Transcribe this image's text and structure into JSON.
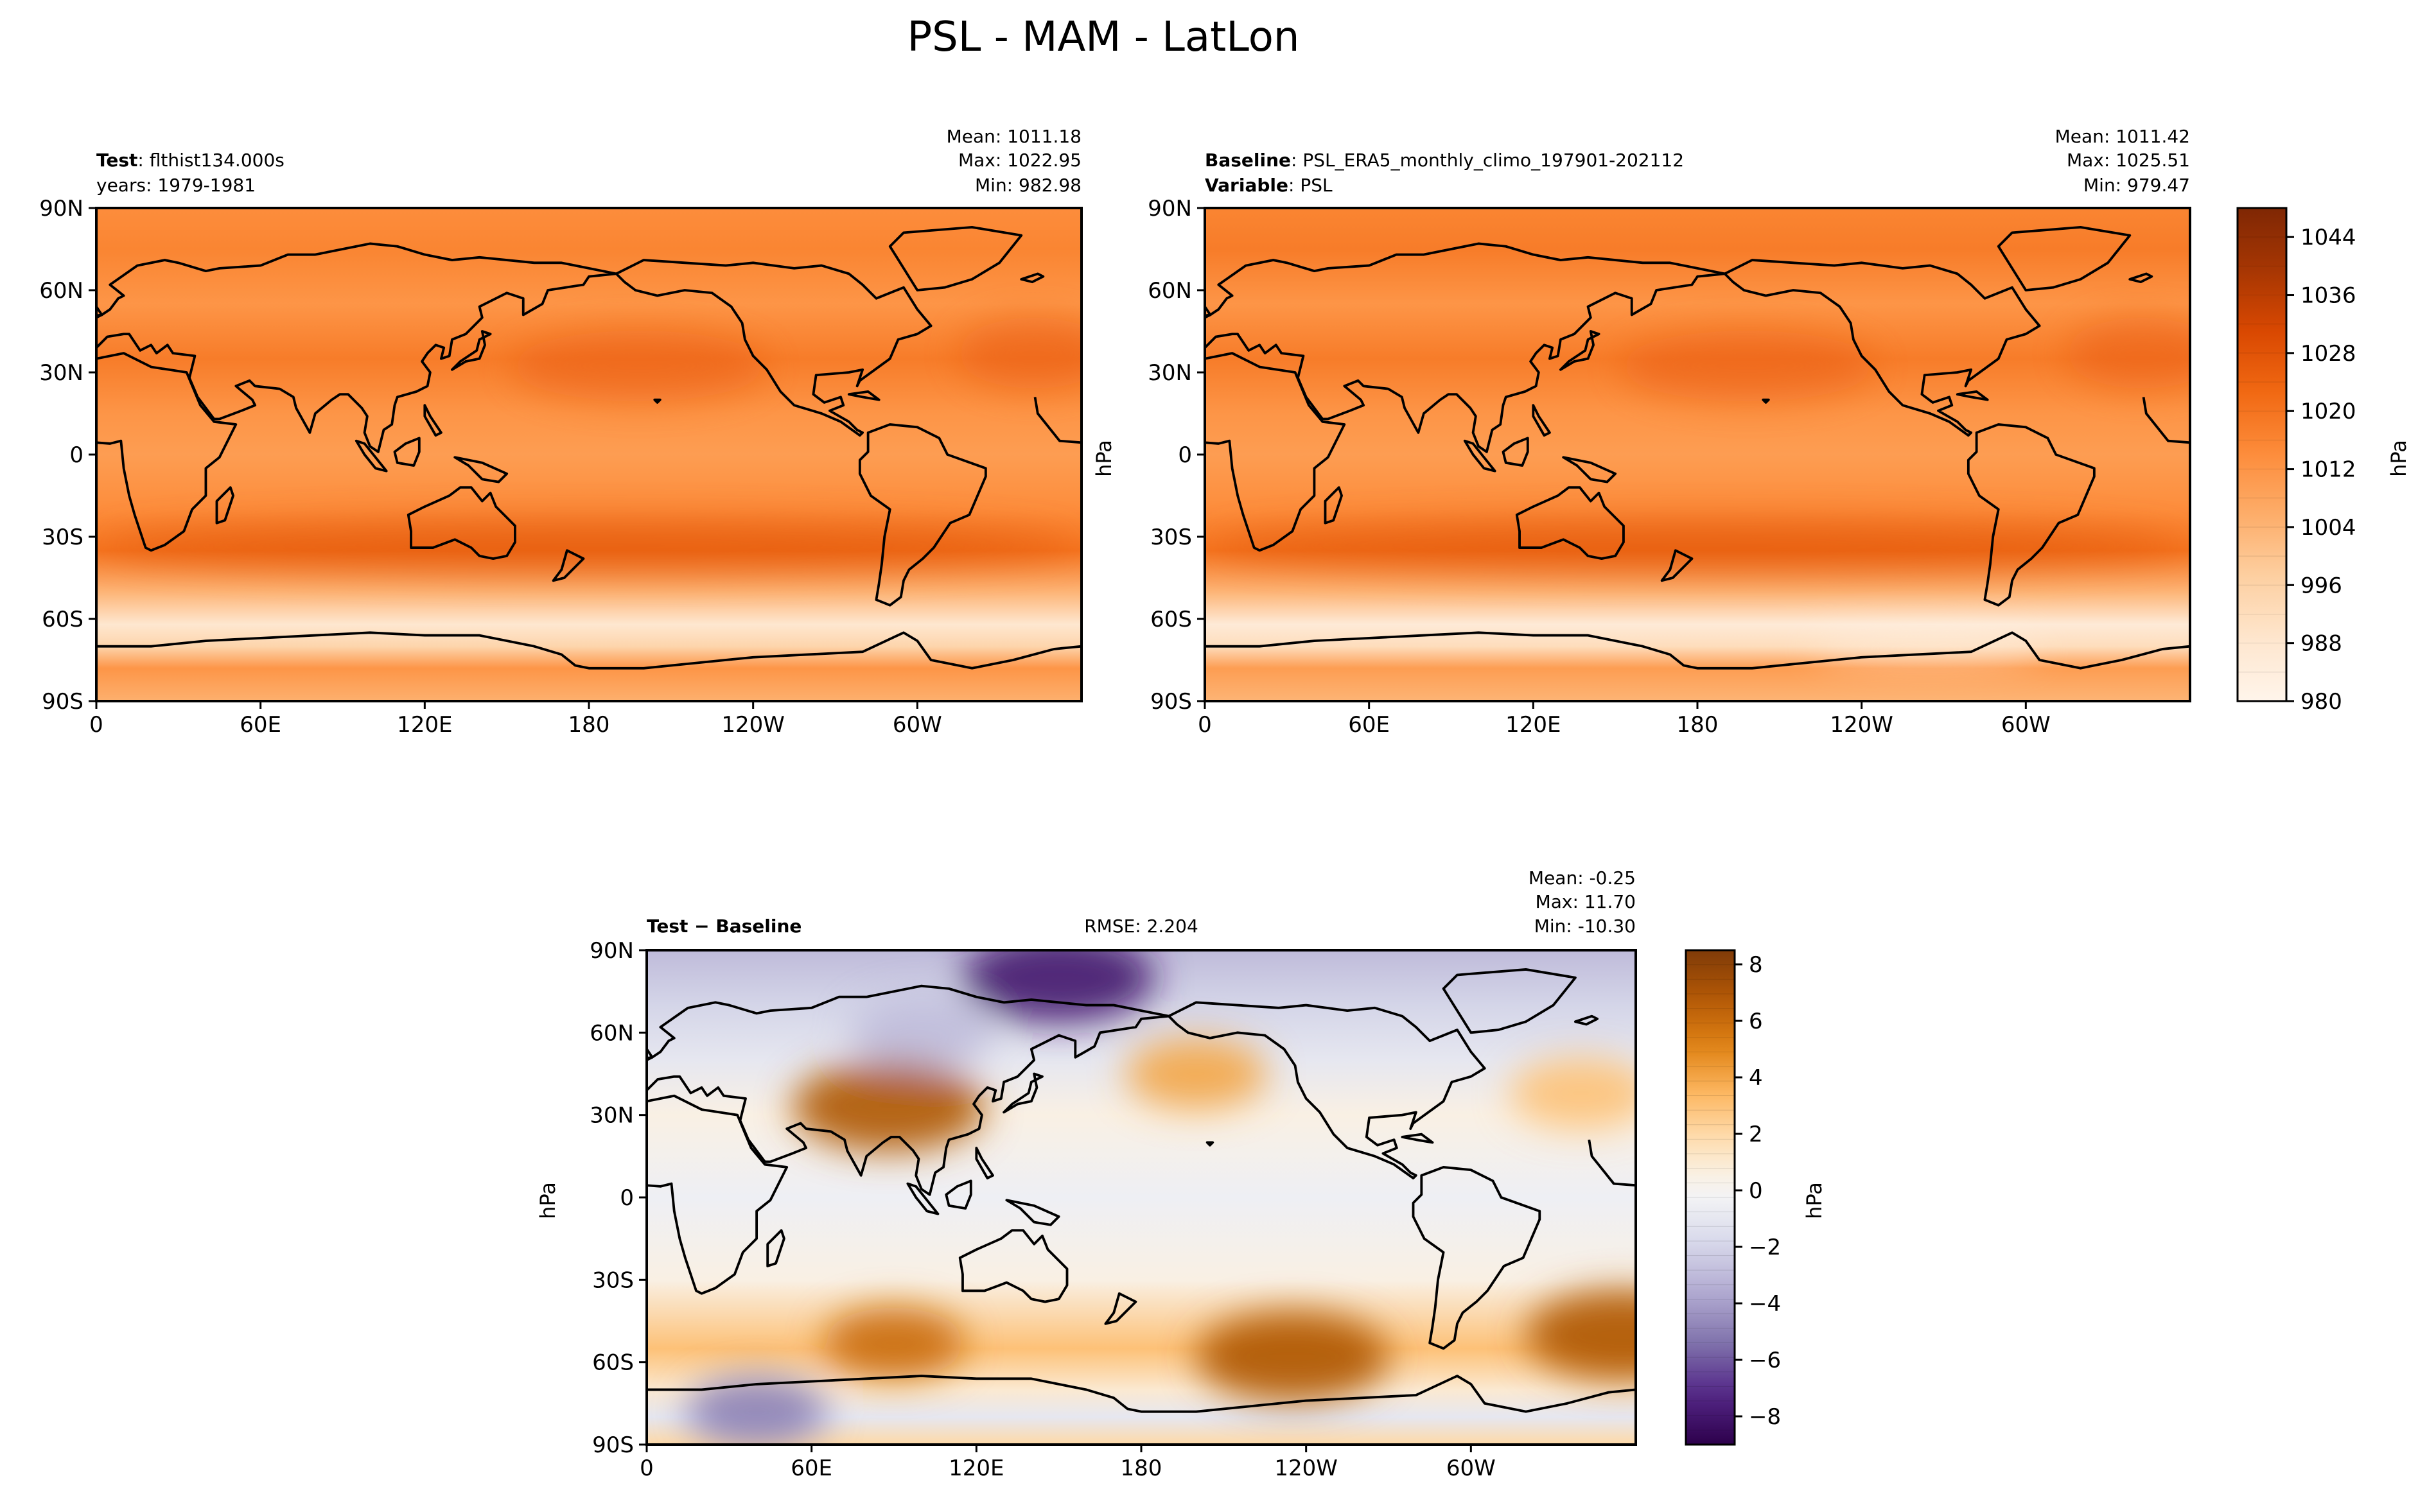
{
  "figure": {
    "title": "PSL - MAM - LatLon"
  },
  "chart_data": [
    {
      "type": "heatmap",
      "panel": "test",
      "label_bold": "Test",
      "label_text": "flthist134.000s",
      "label2_text": "years: 1979-1981",
      "stats": {
        "mean": "Mean: 1011.18",
        "max": "Max: 1022.95",
        "min": "Min: 982.98"
      },
      "xticks": [
        "0",
        "60E",
        "120E",
        "180",
        "120W",
        "60W"
      ],
      "yticks": [
        "90N",
        "60N",
        "30N",
        "0",
        "30S",
        "60S",
        "90S"
      ],
      "ylim": [
        -90,
        90
      ],
      "zones": [
        {
          "lat": 90,
          "value": 1014
        },
        {
          "lat": 75,
          "value": 1016
        },
        {
          "lat": 55,
          "value": 1012
        },
        {
          "lat": 35,
          "value": 1018
        },
        {
          "lat": 15,
          "value": 1012
        },
        {
          "lat": 0,
          "value": 1010
        },
        {
          "lat": -20,
          "value": 1014
        },
        {
          "lat": -35,
          "value": 1020
        },
        {
          "lat": -50,
          "value": 1004
        },
        {
          "lat": -62,
          "value": 988
        },
        {
          "lat": -70,
          "value": 995
        },
        {
          "lat": -78,
          "value": 1012
        },
        {
          "lat": -90,
          "value": 1005
        }
      ]
    },
    {
      "type": "heatmap",
      "panel": "baseline",
      "label_bold": "Baseline",
      "label_text": "PSL_ERA5_monthly_climo_197901-202112",
      "label2_bold": "Variable",
      "label2_text": "PSL",
      "stats": {
        "mean": "Mean: 1011.42",
        "max": "Max: 1025.51",
        "min": "Min: 979.47"
      },
      "xticks": [
        "0",
        "60E",
        "120E",
        "180",
        "120W",
        "60W"
      ],
      "yticks": [
        "90N",
        "60N",
        "30N",
        "0",
        "30S",
        "60S",
        "90S"
      ],
      "ylabel": "hPa",
      "ylim": [
        -90,
        90
      ],
      "zones": [
        {
          "lat": 90,
          "value": 1016
        },
        {
          "lat": 75,
          "value": 1018
        },
        {
          "lat": 55,
          "value": 1012
        },
        {
          "lat": 35,
          "value": 1018
        },
        {
          "lat": 15,
          "value": 1012
        },
        {
          "lat": 0,
          "value": 1010
        },
        {
          "lat": -20,
          "value": 1014
        },
        {
          "lat": -35,
          "value": 1020
        },
        {
          "lat": -50,
          "value": 1004
        },
        {
          "lat": -62,
          "value": 986
        },
        {
          "lat": -70,
          "value": 992
        },
        {
          "lat": -78,
          "value": 1010
        },
        {
          "lat": -90,
          "value": 1004
        }
      ]
    },
    {
      "type": "heatmap",
      "panel": "difference",
      "label_bold": "Test − Baseline",
      "rmse": "RMSE: 2.204",
      "stats": {
        "mean": "Mean: -0.25",
        "max": "Max: 11.70",
        "min": "Min: -10.30"
      },
      "xticks": [
        "0",
        "60E",
        "120E",
        "180",
        "120W",
        "60W"
      ],
      "yticks": [
        "90N",
        "60N",
        "30N",
        "0",
        "30S",
        "60S",
        "90S"
      ],
      "ylabel": "hPa",
      "ylim": [
        -90,
        90
      ],
      "zones": [
        {
          "lat": 90,
          "value": -3
        },
        {
          "lat": 70,
          "value": -2
        },
        {
          "lat": 50,
          "value": -1
        },
        {
          "lat": 30,
          "value": 0.5
        },
        {
          "lat": 0,
          "value": -0.5
        },
        {
          "lat": -30,
          "value": 0.5
        },
        {
          "lat": -55,
          "value": 3
        },
        {
          "lat": -70,
          "value": 1
        },
        {
          "lat": -80,
          "value": -1
        },
        {
          "lat": -90,
          "value": 2
        }
      ],
      "features": [
        {
          "name": "arctic-low",
          "lon": 150,
          "lat": 80,
          "value": -8
        },
        {
          "name": "siberia-low",
          "lon": 100,
          "lat": 60,
          "value": -3
        },
        {
          "name": "tibet-high",
          "lon": 88,
          "lat": 33,
          "value": 7
        },
        {
          "name": "north-pacific-high",
          "lon": 200,
          "lat": 45,
          "value": 4
        },
        {
          "name": "north-atlantic-high",
          "lon": 340,
          "lat": 38,
          "value": 3
        },
        {
          "name": "south-indian-high",
          "lon": 90,
          "lat": -53,
          "value": 6
        },
        {
          "name": "south-pacific-high",
          "lon": 235,
          "lat": -58,
          "value": 7
        },
        {
          "name": "south-atlantic-high",
          "lon": 355,
          "lat": -50,
          "value": 7
        },
        {
          "name": "antarctic-low",
          "lon": 40,
          "lat": -78,
          "value": -5
        }
      ]
    }
  ],
  "colorbars": {
    "absolute": {
      "label": "hPa",
      "range": [
        980,
        1048
      ],
      "levels": 17,
      "ticks": [
        "1044",
        "1036",
        "1028",
        "1020",
        "1012",
        "1004",
        "996",
        "988",
        "980"
      ],
      "tick_values": [
        1044,
        1036,
        1028,
        1020,
        1012,
        1004,
        996,
        988,
        980
      ]
    },
    "difference": {
      "label": "hPa",
      "range": [
        -9,
        8.5
      ],
      "ticks": [
        "8",
        "6",
        "4",
        "2",
        "0",
        "−2",
        "−4",
        "−6",
        "−8"
      ],
      "tick_values": [
        8,
        6,
        4,
        2,
        0,
        -2,
        -4,
        -6,
        -8
      ]
    }
  },
  "colors": {
    "oranges_low": "#fff5eb",
    "oranges_mid": "#fd8d3c",
    "oranges_high": "#7f2704",
    "puor_neg": "#2d004b",
    "puor_zero": "#f7f7f7",
    "puor_pos": "#7f3b08"
  }
}
